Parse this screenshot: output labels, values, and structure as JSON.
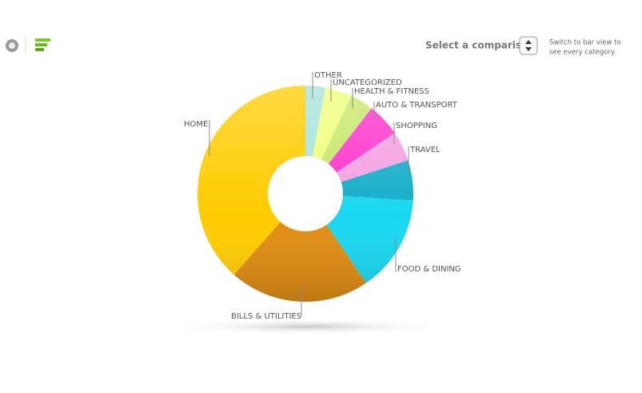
{
  "ui": {
    "comparison_label": "Select a comparison",
    "hint_lines": [
      "Switch to bar view to",
      "see every category."
    ]
  },
  "chart_data": {
    "type": "pie",
    "donut": true,
    "categories": [
      "OTHER",
      "UNCATEGORIZED",
      "HEALTH & FITNESS",
      "AUTO & TRANSPORT",
      "SHOPPING",
      "TRAVEL",
      "FOOD & DINING",
      "BILLS & UTILITIES",
      "HOME"
    ],
    "values": [
      3,
      4,
      3.5,
      5,
      4.5,
      6,
      14.5,
      21,
      38.5
    ],
    "colors": [
      "#a9e2dc",
      "#eeff7a",
      "#c6e86a",
      "#ff33cc",
      "#f5a0e0",
      "#14adc8",
      "#18d8f0",
      "#e08c12",
      "#ffcc00"
    ]
  }
}
